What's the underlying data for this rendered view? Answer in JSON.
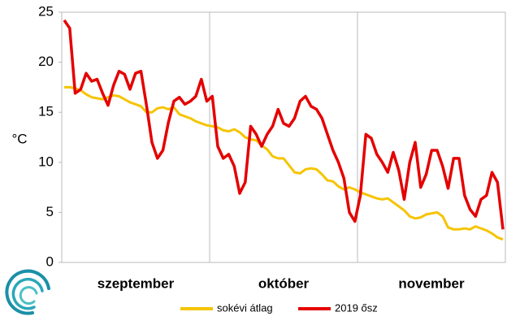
{
  "chart_data": {
    "type": "line",
    "y_label": "°C",
    "months": [
      "szeptember",
      "október",
      "november"
    ],
    "ylim": [
      0,
      25
    ],
    "yticks": [
      0,
      5,
      10,
      15,
      20,
      25
    ],
    "series": [
      {
        "name": "sokévi átlag",
        "color": "#f5c400",
        "values": [
          17.5,
          17.5,
          17.4,
          17.2,
          16.8,
          16.5,
          16.4,
          16.3,
          16.5,
          16.7,
          16.6,
          16.3,
          16.0,
          15.8,
          15.6,
          15.0,
          15.0,
          15.4,
          15.5,
          15.3,
          15.5,
          14.8,
          14.6,
          14.4,
          14.1,
          13.9,
          13.7,
          13.6,
          13.5,
          13.2,
          13.1,
          13.3,
          13.0,
          12.5,
          12.3,
          12.2,
          11.7,
          11.3,
          10.6,
          10.4,
          10.4,
          9.7,
          9.0,
          8.9,
          9.3,
          9.4,
          9.3,
          8.8,
          8.2,
          8.1,
          7.6,
          7.3,
          7.5,
          7.3,
          7.0,
          6.8,
          6.6,
          6.4,
          6.3,
          6.4,
          6.0,
          5.6,
          5.2,
          4.6,
          4.4,
          4.5,
          4.8,
          4.9,
          5.0,
          4.6,
          3.5,
          3.3,
          3.3,
          3.4,
          3.3,
          3.6,
          3.4,
          3.2,
          2.9,
          2.5,
          2.3
        ]
      },
      {
        "name": "2019 ősz",
        "color": "#e50000",
        "values": [
          24.2,
          23.4,
          16.9,
          17.3,
          18.9,
          18.1,
          18.3,
          16.9,
          15.7,
          17.7,
          19.1,
          18.8,
          17.3,
          18.9,
          19.1,
          15.7,
          12.0,
          10.4,
          11.2,
          14.0,
          16.1,
          16.5,
          15.8,
          16.1,
          16.6,
          18.3,
          16.1,
          16.6,
          11.6,
          10.4,
          10.8,
          9.6,
          6.9,
          8.0,
          13.6,
          12.8,
          11.6,
          12.8,
          13.6,
          15.3,
          13.9,
          13.6,
          14.4,
          16.1,
          16.6,
          15.6,
          15.3,
          14.4,
          12.8,
          11.2,
          10.0,
          8.4,
          5.0,
          4.1,
          6.7,
          12.8,
          12.4,
          10.8,
          10.0,
          9.0,
          11.0,
          9.2,
          6.3,
          10.0,
          12.0,
          7.5,
          8.8,
          11.2,
          11.2,
          9.6,
          7.4,
          10.4,
          10.4,
          6.7,
          5.3,
          4.6,
          6.3,
          6.7,
          9.0,
          8.0,
          3.3
        ]
      }
    ]
  }
}
